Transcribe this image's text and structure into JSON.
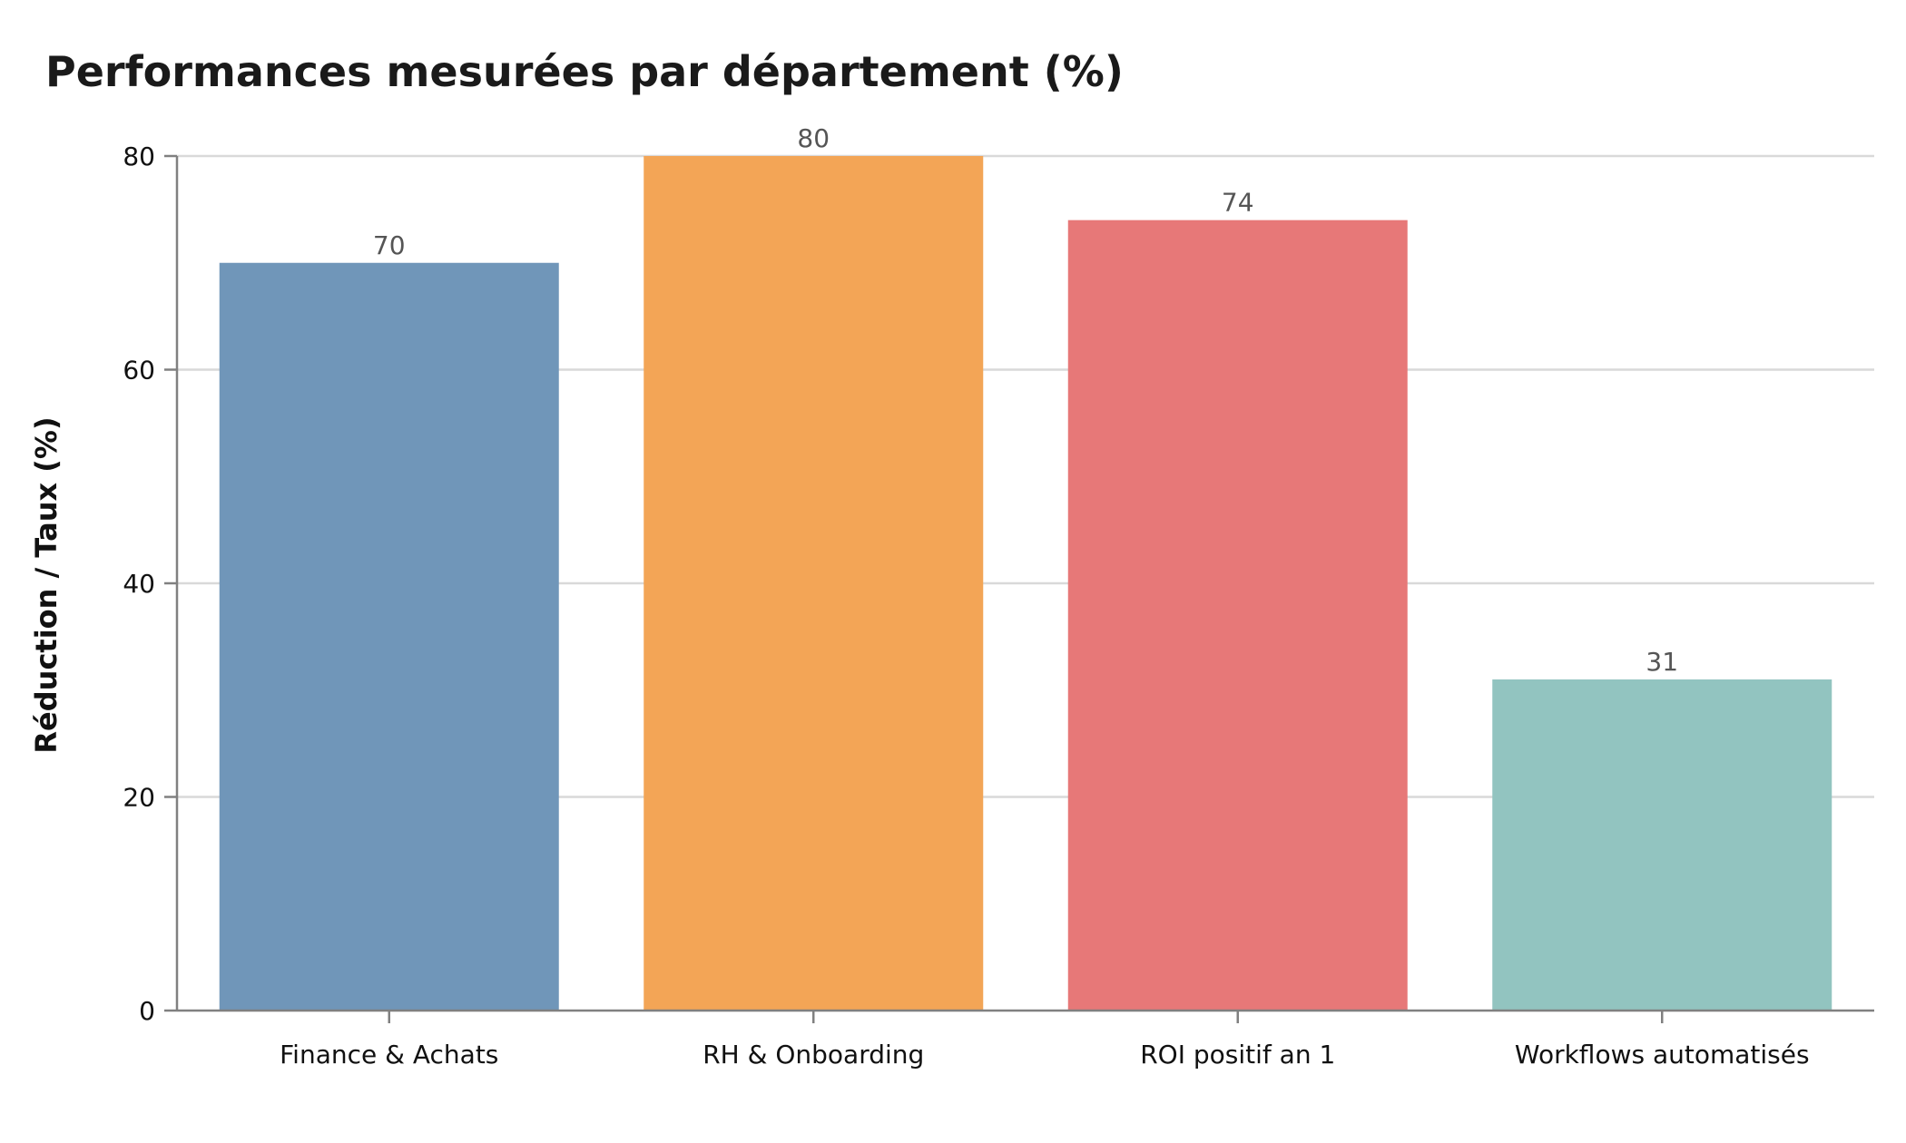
{
  "chart_data": {
    "type": "bar",
    "title": "Performances mesurées par département (%)",
    "xlabel": "",
    "ylabel": "Réduction / Taux (%)",
    "categories": [
      "Finance & Achats",
      "RH & Onboarding",
      "ROI positif an 1",
      "Workflows automatisés"
    ],
    "values": [
      70,
      80,
      74,
      31
    ],
    "data_labels": [
      "70",
      "80",
      "74",
      "31"
    ],
    "colors": [
      "#7096b9",
      "#f3a556",
      "#e77878",
      "#92c4c0"
    ],
    "ylim": [
      0,
      80
    ],
    "yticks": [
      0,
      20,
      40,
      60,
      80
    ],
    "ytick_labels": [
      "0",
      "20",
      "40",
      "60",
      "80"
    ],
    "grid": "horizontal",
    "legend": "none"
  }
}
